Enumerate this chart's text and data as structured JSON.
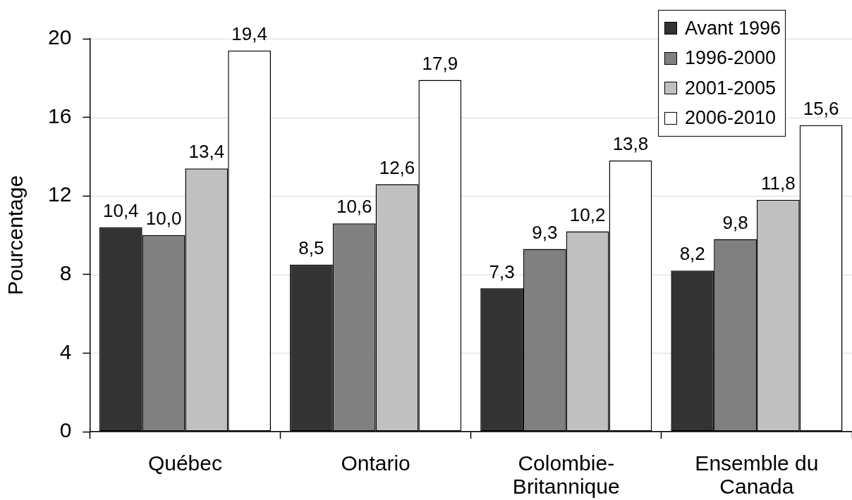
{
  "chart_data": {
    "type": "bar",
    "categories": [
      "Québec",
      "Ontario",
      "Colombie-Britannique",
      "Ensemble du Canada"
    ],
    "ylabel": "Pourcentage",
    "ylim": [
      0,
      20
    ],
    "yticks": [
      0,
      4,
      8,
      12,
      16,
      20
    ],
    "grid": "y",
    "legend": "top right",
    "series": [
      {
        "name": "Avant 1996",
        "color": "#333333",
        "values": [
          10.4,
          8.5,
          7.3,
          8.2
        ],
        "value_labels": [
          "10,4",
          "8,5",
          "7,3",
          "8,2"
        ]
      },
      {
        "name": "1996-2000",
        "color": "#808080",
        "values": [
          10.0,
          10.6,
          9.3,
          9.8
        ],
        "value_labels": [
          "10,0",
          "10,6",
          "9,3",
          "9,8"
        ]
      },
      {
        "name": "2001-2005",
        "color": "#c0c0c0",
        "values": [
          13.4,
          12.6,
          10.2,
          11.8
        ],
        "value_labels": [
          "13,4",
          "12,6",
          "10,2",
          "11,8"
        ]
      },
      {
        "name": "2006-2010",
        "color": "#ffffff",
        "values": [
          19.4,
          17.9,
          13.8,
          15.6
        ],
        "value_labels": [
          "19,4",
          "17,9",
          "13,8",
          "15,6"
        ]
      }
    ]
  }
}
